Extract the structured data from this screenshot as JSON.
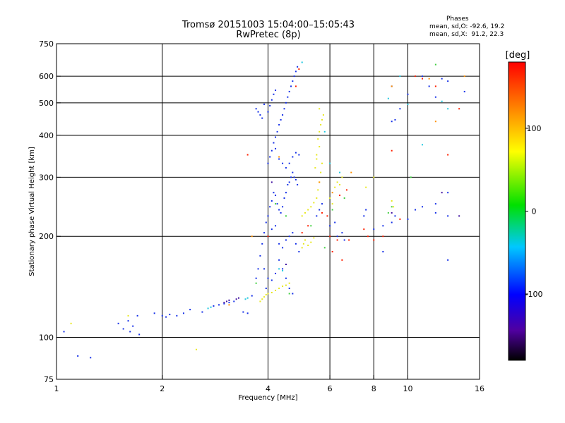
{
  "chart_data": {
    "type": "scatter",
    "title": "Tromsø 20151003 15:04:00–15:05:43",
    "subtitle": "RwPretec (8p)",
    "stats": {
      "heading": "Phases",
      "line1": "mean, sd,O: -92.6, 19.2",
      "line2": "mean, sd,X:  91.2, 22.3"
    },
    "xlabel": "Frequency [MHz]",
    "ylabel": "Stationary phase Virtual Height [km]",
    "xscale": "log",
    "yscale": "log",
    "xlim": [
      1,
      16
    ],
    "ylim": [
      75,
      750
    ],
    "x_ticks": [
      {
        "value": 1,
        "label": "1"
      },
      {
        "value": 2,
        "label": "2"
      },
      {
        "value": 4,
        "label": "4"
      },
      {
        "value": 6,
        "label": "6"
      },
      {
        "value": 8,
        "label": "8"
      },
      {
        "value": 10,
        "label": "10"
      },
      {
        "value": 16,
        "label": "16"
      }
    ],
    "y_ticks": [
      {
        "value": 75,
        "label": "75"
      },
      {
        "value": 100,
        "label": "100"
      },
      {
        "value": 200,
        "label": "200"
      },
      {
        "value": 300,
        "label": "300"
      },
      {
        "value": 400,
        "label": "400"
      },
      {
        "value": 500,
        "label": "500"
      },
      {
        "value": 600,
        "label": "600"
      },
      {
        "value": 750,
        "label": "750"
      }
    ],
    "x_gridlines": [
      2,
      4,
      6,
      8,
      10
    ],
    "y_gridlines": [
      100,
      200,
      300,
      400,
      500,
      600
    ],
    "grid": true,
    "colorbar": {
      "label": "[deg]",
      "range": [
        -180,
        180
      ],
      "ticks": [
        {
          "value": 100,
          "label": "100"
        },
        {
          "value": 0,
          "label": "0"
        },
        {
          "value": -100,
          "label": "-100"
        }
      ]
    },
    "series": [
      {
        "phase": -100,
        "color": "#1530e8",
        "points": [
          [
            1.05,
            104
          ],
          [
            1.15,
            88
          ],
          [
            1.25,
            87
          ],
          [
            1.5,
            110
          ],
          [
            1.55,
            106
          ],
          [
            1.6,
            112
          ],
          [
            1.62,
            104
          ],
          [
            1.65,
            108
          ],
          [
            1.7,
            116
          ],
          [
            1.72,
            102
          ],
          [
            1.9,
            118
          ],
          [
            2.0,
            116
          ],
          [
            2.05,
            115
          ],
          [
            2.1,
            117
          ],
          [
            2.2,
            116
          ],
          [
            2.3,
            118
          ],
          [
            2.4,
            121
          ],
          [
            2.6,
            119
          ],
          [
            2.8,
            124
          ],
          [
            2.9,
            125
          ],
          [
            3.0,
            126
          ],
          [
            3.1,
            127
          ],
          [
            3.2,
            128
          ],
          [
            3.4,
            119
          ],
          [
            3.5,
            118
          ],
          [
            3.6,
            133
          ],
          [
            3.7,
            150
          ],
          [
            3.75,
            160
          ],
          [
            3.8,
            175
          ],
          [
            3.85,
            190
          ],
          [
            3.9,
            205
          ],
          [
            3.95,
            220
          ],
          [
            4.0,
            230
          ],
          [
            4.05,
            245
          ],
          [
            4.1,
            255
          ],
          [
            4.15,
            270
          ],
          [
            4.2,
            265
          ],
          [
            4.25,
            250
          ],
          [
            4.3,
            240
          ],
          [
            4.35,
            235
          ],
          [
            4.4,
            245
          ],
          [
            4.45,
            260
          ],
          [
            4.5,
            270
          ],
          [
            4.55,
            285
          ],
          [
            4.6,
            290
          ],
          [
            4.65,
            300
          ],
          [
            4.7,
            310
          ],
          [
            4.75,
            300
          ],
          [
            4.8,
            295
          ],
          [
            4.85,
            285
          ],
          [
            4.0,
            330
          ],
          [
            4.05,
            345
          ],
          [
            4.1,
            360
          ],
          [
            4.15,
            380
          ],
          [
            4.2,
            395
          ],
          [
            4.25,
            410
          ],
          [
            4.3,
            430
          ],
          [
            4.35,
            445
          ],
          [
            4.4,
            460
          ],
          [
            4.45,
            480
          ],
          [
            4.5,
            500
          ],
          [
            4.55,
            520
          ],
          [
            4.6,
            540
          ],
          [
            4.65,
            560
          ],
          [
            4.7,
            580
          ],
          [
            4.75,
            600
          ],
          [
            4.8,
            620
          ],
          [
            4.85,
            640
          ],
          [
            4.2,
            365
          ],
          [
            4.3,
            340
          ],
          [
            4.4,
            330
          ],
          [
            4.5,
            320
          ],
          [
            4.6,
            330
          ],
          [
            4.7,
            345
          ],
          [
            4.8,
            355
          ],
          [
            4.9,
            350
          ],
          [
            4.0,
            470
          ],
          [
            4.05,
            490
          ],
          [
            4.1,
            510
          ],
          [
            4.15,
            530
          ],
          [
            4.2,
            545
          ],
          [
            3.7,
            480
          ],
          [
            3.75,
            470
          ],
          [
            3.8,
            460
          ],
          [
            3.85,
            450
          ],
          [
            3.9,
            495
          ],
          [
            4.0,
            200
          ],
          [
            4.1,
            210
          ],
          [
            4.2,
            215
          ],
          [
            4.3,
            190
          ],
          [
            4.4,
            185
          ],
          [
            4.5,
            195
          ],
          [
            4.6,
            200
          ],
          [
            4.7,
            205
          ],
          [
            4.8,
            190
          ],
          [
            4.9,
            180
          ],
          [
            4.3,
            170
          ],
          [
            4.4,
            160
          ],
          [
            4.5,
            150
          ],
          [
            4.6,
            140
          ],
          [
            4.7,
            135
          ],
          [
            4.2,
            155
          ],
          [
            4.1,
            148
          ],
          [
            4.0,
            150
          ],
          [
            3.95,
            140
          ],
          [
            3.9,
            160
          ],
          [
            5.5,
            230
          ],
          [
            5.6,
            240
          ],
          [
            5.7,
            250
          ],
          [
            6.0,
            215
          ],
          [
            6.2,
            220
          ],
          [
            6.3,
            200
          ],
          [
            6.5,
            205
          ],
          [
            6.6,
            195
          ],
          [
            7.5,
            230
          ],
          [
            7.6,
            240
          ],
          [
            8.0,
            210
          ],
          [
            8.5,
            215
          ],
          [
            9.0,
            220
          ],
          [
            9.2,
            230
          ],
          [
            10.0,
            225
          ],
          [
            10.5,
            240
          ],
          [
            11.0,
            245
          ],
          [
            12.0,
            235
          ],
          [
            13.0,
            230
          ],
          [
            9.0,
            560
          ],
          [
            9.5,
            480
          ],
          [
            10.0,
            530
          ],
          [
            11.0,
            600
          ],
          [
            11.5,
            560
          ],
          [
            12.0,
            520
          ],
          [
            12.5,
            590
          ],
          [
            13.0,
            580
          ],
          [
            14.5,
            540
          ],
          [
            9.0,
            440
          ],
          [
            9.2,
            445
          ],
          [
            12.0,
            250
          ],
          [
            13.0,
            270
          ],
          [
            13.0,
            170
          ],
          [
            8.5,
            180
          ]
        ]
      },
      {
        "phase": 100,
        "color": "#e8e820",
        "points": [
          [
            1.1,
            110
          ],
          [
            1.6,
            116
          ],
          [
            2.5,
            92
          ],
          [
            3.8,
            128
          ],
          [
            3.85,
            130
          ],
          [
            3.9,
            132
          ],
          [
            3.95,
            134
          ],
          [
            4.0,
            135
          ],
          [
            4.1,
            136
          ],
          [
            4.2,
            138
          ],
          [
            4.3,
            140
          ],
          [
            4.4,
            142
          ],
          [
            4.5,
            143
          ],
          [
            4.6,
            145
          ],
          [
            5.0,
            185
          ],
          [
            5.05,
            190
          ],
          [
            5.1,
            195
          ],
          [
            5.2,
            188
          ],
          [
            5.3,
            192
          ],
          [
            5.4,
            198
          ],
          [
            5.0,
            230
          ],
          [
            5.1,
            235
          ],
          [
            5.2,
            240
          ],
          [
            5.3,
            245
          ],
          [
            5.4,
            252
          ],
          [
            5.5,
            260
          ],
          [
            5.55,
            275
          ],
          [
            5.6,
            290
          ],
          [
            5.65,
            310
          ],
          [
            5.7,
            330
          ],
          [
            5.5,
            350
          ],
          [
            5.6,
            370
          ],
          [
            5.55,
            390
          ],
          [
            5.6,
            410
          ],
          [
            5.65,
            430
          ],
          [
            5.7,
            445
          ],
          [
            5.75,
            460
          ],
          [
            5.6,
            480
          ],
          [
            5.5,
            340
          ],
          [
            5.45,
            320
          ],
          [
            6.2,
            280
          ],
          [
            6.3,
            290
          ],
          [
            6.4,
            285
          ],
          [
            6.5,
            300
          ],
          [
            7.6,
            280
          ],
          [
            8.0,
            300
          ],
          [
            9.0,
            255
          ],
          [
            9.1,
            245
          ],
          [
            6.0,
            260
          ],
          [
            6.1,
            250
          ]
        ]
      },
      {
        "phase": 170,
        "color": "#ff2000",
        "points": [
          [
            4.8,
            560
          ],
          [
            4.9,
            630
          ],
          [
            5.0,
            205
          ],
          [
            5.2,
            215
          ],
          [
            5.7,
            235
          ],
          [
            5.9,
            230
          ],
          [
            6.0,
            200
          ],
          [
            6.1,
            180
          ],
          [
            6.3,
            195
          ],
          [
            6.4,
            265
          ],
          [
            6.7,
            275
          ],
          [
            7.5,
            210
          ],
          [
            7.7,
            200
          ],
          [
            8.0,
            195
          ],
          [
            8.5,
            200
          ],
          [
            9.0,
            360
          ],
          [
            9.5,
            225
          ],
          [
            10.5,
            600
          ],
          [
            11.0,
            590
          ],
          [
            12.0,
            560
          ],
          [
            13.0,
            350
          ],
          [
            14.0,
            480
          ],
          [
            6.5,
            170
          ],
          [
            6.8,
            195
          ],
          [
            4.0,
            200
          ],
          [
            3.5,
            350
          ]
        ]
      },
      {
        "phase": -20,
        "color": "#20c8e0",
        "points": [
          [
            2.7,
            122
          ],
          [
            2.75,
            123
          ],
          [
            3.45,
            130
          ],
          [
            3.5,
            131
          ],
          [
            4.3,
            160
          ],
          [
            4.4,
            158
          ],
          [
            5.0,
            660
          ],
          [
            5.8,
            410
          ],
          [
            6.0,
            330
          ],
          [
            6.4,
            310
          ],
          [
            8.8,
            515
          ],
          [
            9.5,
            600
          ],
          [
            10.0,
            495
          ],
          [
            11.0,
            375
          ],
          [
            12.5,
            505
          ],
          [
            13.0,
            480
          ]
        ]
      },
      {
        "phase": 20,
        "color": "#40d040",
        "points": [
          [
            4.2,
            250
          ],
          [
            4.5,
            230
          ],
          [
            5.3,
            215
          ],
          [
            5.8,
            185
          ],
          [
            6.1,
            240
          ],
          [
            6.6,
            260
          ],
          [
            8.8,
            235
          ],
          [
            9.0,
            245
          ],
          [
            10.2,
            300
          ],
          [
            12.0,
            650
          ],
          [
            3.7,
            145
          ],
          [
            4.6,
            135
          ]
        ]
      },
      {
        "phase": -140,
        "color": "#4010a0",
        "points": [
          [
            3.0,
            127
          ],
          [
            3.05,
            128
          ],
          [
            3.1,
            129
          ],
          [
            3.25,
            130
          ],
          [
            3.3,
            131
          ],
          [
            4.1,
            290
          ],
          [
            4.5,
            165
          ],
          [
            9.0,
            235
          ],
          [
            12.5,
            270
          ],
          [
            14.0,
            230
          ]
        ]
      },
      {
        "phase": 140,
        "color": "#ff9000",
        "points": [
          [
            3.1,
            125
          ],
          [
            3.6,
            200
          ],
          [
            4.3,
            345
          ],
          [
            5.6,
            290
          ],
          [
            6.1,
            270
          ],
          [
            6.9,
            310
          ],
          [
            9.0,
            560
          ],
          [
            11.5,
            590
          ],
          [
            12.0,
            440
          ],
          [
            14.5,
            600
          ]
        ]
      }
    ]
  }
}
